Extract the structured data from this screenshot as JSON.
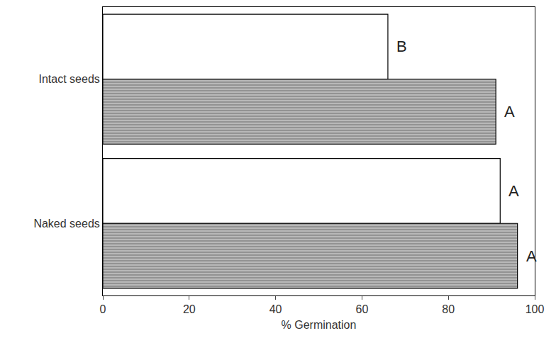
{
  "chart_data": {
    "type": "bar",
    "orientation": "horizontal",
    "categories": [
      "Intact seeds",
      "Naked seeds"
    ],
    "series": [
      {
        "color": "#ffffff",
        "values": [
          66,
          92
        ],
        "marker": "plain"
      },
      {
        "color": "#b8b8b8",
        "values": [
          91,
          96
        ],
        "marker": "hatched"
      }
    ],
    "annotations": [
      {
        "category": "Intact seeds",
        "series": 0,
        "text": "B"
      },
      {
        "category": "Intact seeds",
        "series": 1,
        "text": "A"
      },
      {
        "category": "Naked seeds",
        "series": 0,
        "text": "A"
      },
      {
        "category": "Naked seeds",
        "series": 1,
        "text": "A"
      }
    ],
    "x_label": "% Germination",
    "xlim": [
      0,
      100
    ],
    "xticks": [
      0,
      20,
      40,
      60,
      80,
      100
    ],
    "grid": false
  }
}
